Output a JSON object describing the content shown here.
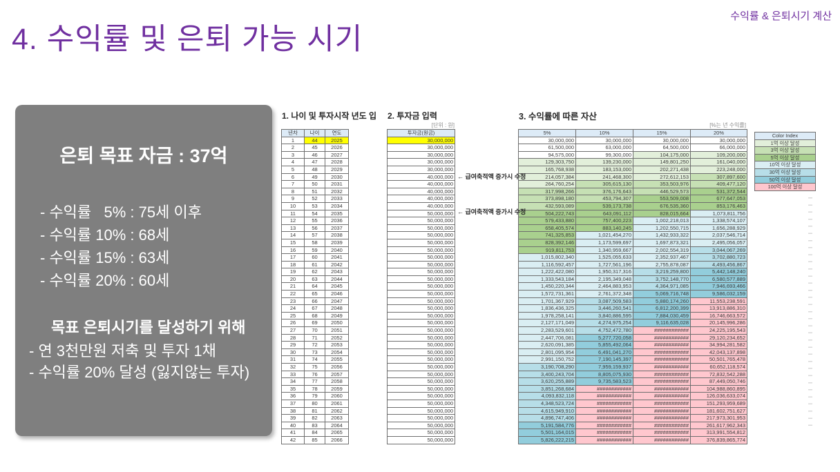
{
  "slide": {
    "title": "4. 수익률 및 은퇴 가능 시기",
    "corner_label": "수익률 & 은퇴시기 계산",
    "accent_color": "#7030A0",
    "box_color": "#7F7F7F",
    "highlight_yellow": "#FFFF00",
    "header_fill": "#DDEBF7"
  },
  "summary_box": {
    "title": "은퇴 목표 자금 : 37억",
    "items": [
      "- 수익률   5% : 75세 이후",
      "- 수익률 10% : 68세",
      "- 수익률 15% : 63세",
      "- 수익률 20% : 60세"
    ],
    "subtitle": "목표 은퇴시기를 달성하기 위해",
    "sub_items": [
      "- 연 3천만원 저축 및 투자 1채",
      "- 수익률 20% 달성 (잃지않는 투자)"
    ]
  },
  "sections": {
    "s1": {
      "title": "1. 나이 및 투자시작 년도 입"
    },
    "s2": {
      "title": "2. 투자금 입력",
      "unit_note": "[단위 : 원]"
    },
    "s3": {
      "title": "3. 수익률에 따른 자산",
      "unit_note": "[%는 년 수익률]"
    }
  },
  "age_table": {
    "headers": [
      "년차",
      "나이",
      "연도"
    ],
    "rows": [
      [
        1,
        44,
        2025
      ],
      [
        2,
        45,
        2026
      ],
      [
        3,
        46,
        2027
      ],
      [
        4,
        47,
        2028
      ],
      [
        5,
        48,
        2029
      ],
      [
        6,
        49,
        2030
      ],
      [
        7,
        50,
        2031
      ],
      [
        8,
        51,
        2032
      ],
      [
        9,
        52,
        2033
      ],
      [
        10,
        53,
        2034
      ],
      [
        11,
        54,
        2035
      ],
      [
        12,
        55,
        2036
      ],
      [
        13,
        56,
        2037
      ],
      [
        14,
        57,
        2038
      ],
      [
        15,
        58,
        2039
      ],
      [
        16,
        59,
        2040
      ],
      [
        17,
        60,
        2041
      ],
      [
        18,
        61,
        2042
      ],
      [
        19,
        62,
        2043
      ],
      [
        20,
        63,
        2044
      ],
      [
        21,
        64,
        2045
      ],
      [
        22,
        65,
        2046
      ],
      [
        23,
        66,
        2047
      ],
      [
        24,
        67,
        2048
      ],
      [
        25,
        68,
        2049
      ],
      [
        26,
        69,
        2050
      ],
      [
        27,
        70,
        2051
      ],
      [
        28,
        71,
        2052
      ],
      [
        29,
        72,
        2053
      ],
      [
        30,
        73,
        2054
      ],
      [
        31,
        74,
        2055
      ],
      [
        32,
        75,
        2056
      ],
      [
        33,
        76,
        2057
      ],
      [
        34,
        77,
        2058
      ],
      [
        35,
        78,
        2059
      ],
      [
        36,
        79,
        2060
      ],
      [
        37,
        80,
        2061
      ],
      [
        38,
        81,
        2062
      ],
      [
        39,
        82,
        2063
      ],
      [
        40,
        83,
        2064
      ],
      [
        41,
        84,
        2065
      ],
      [
        42,
        85,
        2066
      ]
    ]
  },
  "invest_table": {
    "header": "투자금(원금)",
    "values": [
      "30,000,000",
      "30,000,000",
      "30,000,000",
      "30,000,000",
      "30,000,000",
      "40,000,000",
      "40,000,000",
      "40,000,000",
      "40,000,000",
      "40,000,000",
      "50,000,000",
      "50,000,000",
      "50,000,000",
      "50,000,000",
      "50,000,000",
      "50,000,000",
      "50,000,000",
      "50,000,000",
      "50,000,000",
      "50,000,000",
      "50,000,000",
      "50,000,000",
      "50,000,000",
      "50,000,000",
      "50,000,000",
      "50,000,000",
      "50,000,000",
      "50,000,000",
      "50,000,000",
      "50,000,000",
      "50,000,000",
      "50,000,000",
      "50,000,000",
      "50,000,000",
      "50,000,000",
      "50,000,000",
      "50,000,000",
      "50,000,000",
      "50,000,000",
      "50,000,000",
      "50,000,000",
      "50,000,000"
    ],
    "annotations": [
      {
        "row": 6,
        "text": "← 급여축적액 증가시 수정"
      },
      {
        "row": 11,
        "text": "← 급여축적액 증가시 수정"
      }
    ]
  },
  "asset_table": {
    "columns": [
      "5%",
      "10%",
      "15%",
      "20%"
    ],
    "rows": [
      [
        "30,000,000",
        "30,000,000",
        "30,000,000",
        "30,000,000"
      ],
      [
        "61,500,000",
        "63,000,000",
        "64,500,000",
        "66,000,000"
      ],
      [
        "94,575,000",
        "99,300,000",
        "104,175,000",
        "109,200,000"
      ],
      [
        "129,303,750",
        "139,230,000",
        "149,801,250",
        "161,040,000"
      ],
      [
        "165,768,938",
        "183,153,000",
        "202,271,438",
        "223,248,000"
      ],
      [
        "214,057,384",
        "241,468,300",
        "272,612,153",
        "307,897,600"
      ],
      [
        "264,760,254",
        "305,615,130",
        "353,503,976",
        "409,477,120"
      ],
      [
        "317,998,266",
        "376,176,643",
        "446,529,573",
        "531,372,544"
      ],
      [
        "373,898,180",
        "453,794,307",
        "553,509,008",
        "677,647,053"
      ],
      [
        "432,593,089",
        "539,173,738",
        "676,535,360",
        "853,176,463"
      ],
      [
        "504,222,743",
        "643,091,112",
        "828,015,664",
        "1,073,811,756"
      ],
      [
        "579,433,880",
        "757,400,223",
        "1,002,218,013",
        "1,338,574,107"
      ],
      [
        "658,405,574",
        "883,140,245",
        "1,202,550,715",
        "1,656,288,929"
      ],
      [
        "741,325,853",
        "1,021,454,270",
        "1,432,933,322",
        "2,037,546,714"
      ],
      [
        "828,392,146",
        "1,173,599,697",
        "1,697,873,321",
        "2,495,056,057"
      ],
      [
        "919,811,753",
        "1,340,959,667",
        "2,002,554,319",
        "3,044,067,269"
      ],
      [
        "1,015,802,340",
        "1,525,055,633",
        "2,352,937,467",
        "3,702,880,723"
      ],
      [
        "1,116,592,457",
        "1,727,561,196",
        "2,755,878,087",
        "4,493,456,867"
      ],
      [
        "1,222,422,080",
        "1,950,317,316",
        "3,219,259,800",
        "5,442,148,240"
      ],
      [
        "1,333,543,184",
        "2,195,349,048",
        "3,752,148,770",
        "6,580,577,889"
      ],
      [
        "1,450,220,344",
        "2,464,883,953",
        "4,364,971,085",
        "7,946,693,466"
      ],
      [
        "1,572,731,361",
        "2,761,372,348",
        "5,069,716,748",
        "9,586,032,159"
      ],
      [
        "1,701,367,929",
        "3,087,509,583",
        "5,880,174,260",
        "11,553,238,591"
      ],
      [
        "1,836,436,325",
        "3,446,260,541",
        "6,812,200,399",
        "13,913,886,310"
      ],
      [
        "1,978,258,141",
        "3,840,886,595",
        "7,884,030,459",
        "16,746,663,572"
      ],
      [
        "2,127,171,049",
        "4,274,975,254",
        "9,116,635,028",
        "20,145,996,286"
      ],
      [
        "2,283,529,601",
        "4,752,472,780",
        "############",
        "24,225,195,543"
      ],
      [
        "2,447,706,081",
        "5,277,720,058",
        "############",
        "29,120,234,652"
      ],
      [
        "2,620,091,385",
        "5,855,492,064",
        "############",
        "34,994,281,582"
      ],
      [
        "2,801,095,954",
        "6,491,041,270",
        "############",
        "42,043,137,898"
      ],
      [
        "2,991,150,752",
        "7,190,145,397",
        "############",
        "50,501,765,478"
      ],
      [
        "3,190,708,290",
        "7,959,159,937",
        "############",
        "60,652,118,574"
      ],
      [
        "3,400,243,704",
        "8,805,075,930",
        "############",
        "72,832,542,288"
      ],
      [
        "3,620,255,889",
        "9,735,583,523",
        "############",
        "87,449,050,746"
      ],
      [
        "3,851,268,684",
        "############",
        "############",
        "104,988,860,895"
      ],
      [
        "4,093,832,118",
        "############",
        "############",
        "126,036,633,074"
      ],
      [
        "4,348,523,724",
        "############",
        "############",
        "151,293,959,689"
      ],
      [
        "4,615,949,910",
        "############",
        "############",
        "181,602,751,627"
      ],
      [
        "4,896,747,406",
        "############",
        "############",
        "217,973,301,953"
      ],
      [
        "5,191,584,776",
        "############",
        "############",
        "261,617,962,343"
      ],
      [
        "5,501,164,015",
        "############",
        "############",
        "313,991,554,812"
      ],
      [
        "5,826,222,215",
        "############",
        "############",
        "376,839,865,774"
      ]
    ]
  },
  "color_index": {
    "title": "Color Index",
    "entries": [
      {
        "label": "1억 이상 달성",
        "color": "#E2EFDA",
        "min": 100000000
      },
      {
        "label": "3억 이상 달성",
        "color": "#C6E0B4",
        "min": 300000000
      },
      {
        "label": "5억 이상 달성",
        "color": "#A9D08E",
        "min": 500000000
      },
      {
        "label": "10억 이상 달성",
        "color": "#DAEEF3",
        "min": 1000000000
      },
      {
        "label": "30억 이상 달성",
        "color": "#B7DEE8",
        "min": 3000000000
      },
      {
        "label": "50억 이상 달성",
        "color": "#92CDDC",
        "min": 5000000000
      },
      {
        "label": "100억 이상 달성",
        "color": "#FFC7CE",
        "min": 10000000000
      }
    ]
  }
}
